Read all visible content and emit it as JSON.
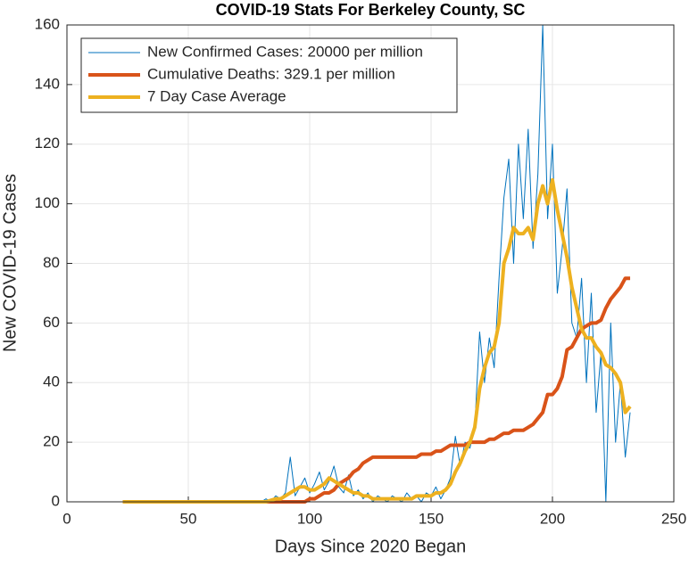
{
  "chart_data": {
    "type": "line",
    "title": "COVID-19 Stats For Berkeley County, SC",
    "xlabel": "Days Since 2020 Began",
    "ylabel": "New COVID-19 Cases",
    "x": [
      23,
      80,
      82,
      84,
      86,
      88,
      90,
      92,
      94,
      96,
      98,
      100,
      102,
      104,
      106,
      108,
      110,
      112,
      114,
      116,
      118,
      120,
      122,
      124,
      126,
      128,
      130,
      132,
      134,
      136,
      138,
      140,
      142,
      144,
      146,
      148,
      150,
      152,
      154,
      156,
      158,
      160,
      162,
      164,
      166,
      168,
      170,
      172,
      174,
      176,
      178,
      180,
      182,
      184,
      186,
      188,
      190,
      192,
      194,
      196,
      198,
      200,
      202,
      204,
      206,
      208,
      210,
      212,
      214,
      216,
      218,
      220,
      222,
      224,
      226,
      228,
      230,
      232
    ],
    "series": [
      {
        "name": "New Confirmed Cases: 20000 per million",
        "color": "#0072bd",
        "width": 1,
        "values": [
          0,
          0,
          1,
          0,
          2,
          1,
          3,
          15,
          2,
          5,
          8,
          3,
          6,
          10,
          4,
          7,
          12,
          5,
          3,
          9,
          2,
          4,
          1,
          3,
          0,
          2,
          1,
          0,
          2,
          1,
          0,
          3,
          1,
          2,
          0,
          3,
          2,
          5,
          1,
          4,
          8,
          22,
          12,
          20,
          18,
          25,
          57,
          40,
          55,
          45,
          75,
          102,
          115,
          80,
          120,
          95,
          125,
          85,
          110,
          160,
          95,
          120,
          70,
          85,
          105,
          60,
          55,
          75,
          40,
          70,
          30,
          50,
          0,
          60,
          20,
          40,
          15,
          30
        ]
      },
      {
        "name": "Cumulative Deaths: 329.1 per million",
        "color": "#d95319",
        "width": 4,
        "values": [
          0,
          0,
          0,
          0,
          0,
          0,
          0,
          0,
          0,
          0,
          0,
          1,
          1,
          2,
          3,
          3,
          4,
          6,
          7,
          8,
          10,
          11,
          13,
          14,
          15,
          15,
          15,
          15,
          15,
          15,
          15,
          15,
          15,
          15,
          16,
          16,
          16,
          17,
          17,
          18,
          19,
          19,
          19,
          19,
          20,
          20,
          20,
          20,
          21,
          21,
          22,
          23,
          23,
          24,
          24,
          24,
          25,
          26,
          28,
          30,
          36,
          36,
          38,
          42,
          51,
          52,
          55,
          58,
          59,
          60,
          60,
          61,
          65,
          68,
          70,
          72,
          75,
          75
        ]
      },
      {
        "name": "7 Day Case Average",
        "color": "#edb120",
        "width": 4,
        "values": [
          0,
          0,
          0,
          0.5,
          1,
          1,
          2,
          3,
          4,
          5,
          5,
          4,
          4,
          5,
          6,
          8,
          7,
          6,
          5,
          4,
          3,
          3,
          2,
          2,
          1,
          1,
          1,
          1,
          1,
          1,
          1,
          1,
          1,
          2,
          2,
          2,
          2,
          3,
          3,
          4,
          6,
          10,
          13,
          17,
          20,
          25,
          38,
          45,
          50,
          52,
          60,
          80,
          85,
          92,
          90,
          90,
          92,
          88,
          100,
          106,
          100,
          108,
          98,
          90,
          82,
          72,
          65,
          58,
          55,
          55,
          52,
          50,
          46,
          45,
          43,
          40,
          30,
          32
        ]
      }
    ],
    "xlim": [
      0,
      250
    ],
    "xticks": [
      0,
      50,
      100,
      150,
      200,
      250
    ],
    "ylim": [
      0,
      160
    ],
    "yticks": [
      0,
      20,
      40,
      60,
      80,
      100,
      120,
      140,
      160
    ],
    "grid": true,
    "legend": "upper left"
  }
}
